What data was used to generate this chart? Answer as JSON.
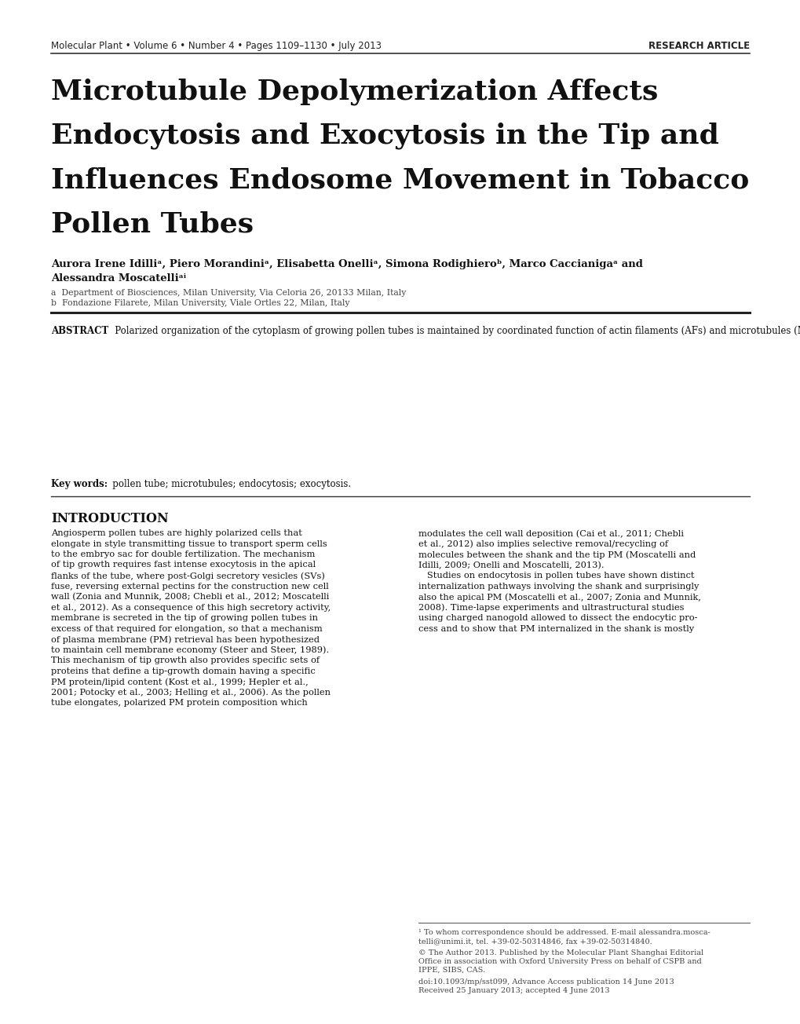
{
  "header_left": "Molecular Plant • Volume 6 • Number 4 • Pages 1109–1130 • July 2013",
  "header_right": "RESEARCH ARTICLE",
  "title_line1": "Microtubule Depolymerization Affects",
  "title_line2": "Endocytosis and Exocytosis in the Tip and",
  "title_line3": "Influences Endosome Movement in Tobacco",
  "title_line4": "Pollen Tubes",
  "authors_line1": "Aurora Irene Idilliᵃ, Piero Morandiniᵃ, Elisabetta Onelliᵃ, Simona Rodighieroᵇ, Marco Caccianigaᵃ and",
  "authors_line2": "Alessandra Moscatelliᵃⁱ",
  "affil_a": "a  Department of Biosciences, Milan University, Via Celoria 26, 20133 Milan, Italy",
  "affil_b": "b  Fondazione Filarete, Milan University, Viale Ortles 22, Milan, Italy",
  "abstract_body": "   Polarized organization of the cytoplasm of growing pollen tubes is maintained by coordinated function of actin filaments (AFs) and microtubules (MTs). AFs convey post-Golgi secretory vesicles to the tip where some fuse with specific domains of the plasma membrane (PM). Secretory activity is balanced by PM retrieval that maintains cell mem-brane economy and regulates the polarized composition of the PM, by dividing lipids/proteins between the shank and the tip. Although AFs play a key role in PM internalization in the shank, the role of MTs in exo-endocytosis needs to be characterized. The present results show that integrity of the MT cytoskeleton is necessary to control exo-endocytosis events in the tip. MT polymerization plays a role in promoting PM invagination in the apex of tobacco pollen tubes since nocodazole affected PM internalization in the tip and subsequent migration of endocytic vesicles from the apex for degradation. MT depolymerization in the apex and shank was associated with misallocation of a significantly greater amount of internalized PM to the Golgi apparatus and its early recycling to the secretory pathway. Fluorescence Recovery After Photobleaching (FRAP) experiments also showed that MT depolymerization in the tip region influenced the rate of exocytosis in the central domain of the apical PM.",
  "keywords_text": "   pollen tube; microtubules; endocytosis; exocytosis.",
  "col1_lines": [
    "Angiosperm pollen tubes are highly polarized cells that",
    "elongate in style transmitting tissue to transport sperm cells",
    "to the embryo sac for double fertilization. The mechanism",
    "of tip growth requires fast intense exocytosis in the apical",
    "flanks of the tube, where post-Golgi secretory vesicles (SVs)",
    "fuse, reversing external pectins for the construction new cell",
    "wall (Zonia and Munnik, 2008; Chebli et al., 2012; Moscatelli",
    "et al., 2012). As a consequence of this high secretory activity,",
    "membrane is secreted in the tip of growing pollen tubes in",
    "excess of that required for elongation, so that a mechanism",
    "of plasma membrane (PM) retrieval has been hypothesized",
    "to maintain cell membrane economy (Steer and Steer, 1989).",
    "This mechanism of tip growth also provides specific sets of",
    "proteins that define a tip-growth domain having a specific",
    "PM protein/lipid content (Kost et al., 1999; Hepler et al.,",
    "2001; Potocky et al., 2003; Helling et al., 2006). As the pollen",
    "tube elongates, polarized PM protein composition which"
  ],
  "col2_lines": [
    "modulates the cell wall deposition (Cai et al., 2011; Chebli",
    "et al., 2012) also implies selective removal/recycling of",
    "molecules between the shank and the tip PM (Moscatelli and",
    "Idilli, 2009; Onelli and Moscatelli, 2013).",
    "   Studies on endocytosis in pollen tubes have shown distinct",
    "internalization pathways involving the shank and surprisingly",
    "also the apical PM (Moscatelli et al., 2007; Zonia and Munnik,",
    "2008). Time-lapse experiments and ultrastructural studies",
    "using charged nanogold allowed to dissect the endocytic pro-",
    "cess and to show that PM internalized in the shank is mostly"
  ],
  "footnote1_lines": [
    "¹ To whom correspondence should be addressed. E-mail alessandra.mosca-",
    "telli@unimi.it, tel. +39-02-50314846, fax +39-02-50314840."
  ],
  "footnote2_lines": [
    "© The Author 2013. Published by the Molecular Plant Shanghai Editorial",
    "Office in association with Oxford University Press on behalf of CSPB and",
    "IPPE, SIBS, CAS."
  ],
  "footnote3": "doi:10.1093/mp/sst099, Advance Access publication 14 June 2013",
  "footnote4": "Received 25 January 2013; accepted 4 June 2013",
  "bg_color": "#ffffff",
  "text_color": "#111111",
  "header_color": "#222222",
  "rule_color": "#333333",
  "affil_color": "#444444",
  "fn_color": "#444444"
}
